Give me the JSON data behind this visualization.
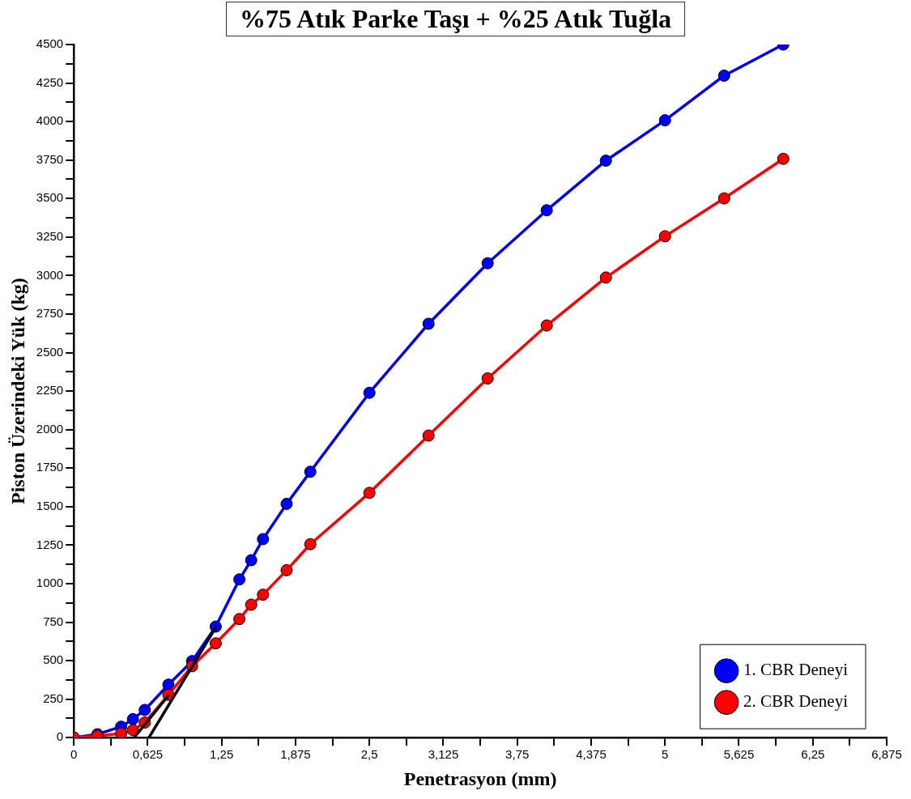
{
  "chart_data": {
    "type": "line",
    "title": "%75 Atık Parke Taşı + %25 Atık Tuğla",
    "xlabel": "Penetrasyon (mm)",
    "ylabel": "Piston Üzerindeki Yük (kg)",
    "x": [
      0,
      0.2,
      0.4,
      0.5,
      0.6,
      0.8,
      1.0,
      1.2,
      1.4,
      1.5,
      1.6,
      1.8,
      2.0,
      2.5,
      3.0,
      3.5,
      4.0,
      4.5,
      5.0,
      5.5,
      6.0
    ],
    "series": [
      {
        "name": "1. CBR Deneyi",
        "color": "#0000ff",
        "values": [
          0,
          22,
          71,
          120,
          180,
          344,
          497,
          721,
          1027,
          1152,
          1289,
          1518,
          1726,
          2239,
          2687,
          3080,
          3424,
          3746,
          4008,
          4298,
          4500
        ]
      },
      {
        "name": "2. CBR Deneyi",
        "color": "#ff0000",
        "values": [
          0,
          10,
          27,
          49,
          98,
          278,
          464,
          612,
          770,
          863,
          928,
          1087,
          1256,
          1589,
          1961,
          2332,
          2676,
          2987,
          3255,
          3501,
          3758
        ]
      },
      {
        "color": "#000000",
        "marker": "none",
        "x": [
          0.51,
          0.8
        ],
        "values": [
          0,
          273
        ]
      },
      {
        "color": "#000000",
        "marker": "none",
        "x": [
          0.635,
          1.2
        ],
        "values": [
          0,
          715
        ]
      }
    ],
    "marker": "circle",
    "legend": "bottom right",
    "xlim": [
      0,
      6.875
    ],
    "ylim": [
      0,
      4500
    ],
    "xticks": [
      0,
      {
        "value": 0.3125,
        "label": null
      },
      {
        "value": 0.625,
        "label": "0,625"
      },
      {
        "value": 0.9375,
        "label": null
      },
      {
        "value": 1.25,
        "label": "1,25"
      },
      {
        "value": 1.5625,
        "label": null
      },
      {
        "value": 1.875,
        "label": "1,875"
      },
      {
        "value": 2.1875,
        "label": null
      },
      {
        "value": 2.5,
        "label": "2,5"
      },
      {
        "value": 2.8125,
        "label": null
      },
      {
        "value": 3.125,
        "label": "3,125"
      },
      {
        "value": 3.4375,
        "label": null
      },
      {
        "value": 3.75,
        "label": "3,75"
      },
      {
        "value": 4.0625,
        "label": null
      },
      {
        "value": 4.375,
        "label": "4,375"
      },
      {
        "value": 4.6875,
        "label": null
      },
      5,
      {
        "value": 5.3125,
        "label": null
      },
      {
        "value": 5.625,
        "label": "5,625"
      },
      {
        "value": 5.9375,
        "label": null
      },
      {
        "value": 6.25,
        "label": "6,25"
      },
      {
        "value": 6.5625,
        "label": null
      },
      {
        "value": 6.875,
        "label": "6,875"
      }
    ],
    "yticks": [
      0,
      {
        "value": 125,
        "label": null
      },
      250,
      {
        "value": 375,
        "label": null
      },
      500,
      {
        "value": 625,
        "label": null
      },
      750,
      {
        "value": 875,
        "label": null
      },
      1000,
      {
        "value": 1125,
        "label": null
      },
      1250,
      {
        "value": 1375,
        "label": null
      },
      1500,
      {
        "value": 1625,
        "label": null
      },
      1750,
      {
        "value": 1875,
        "label": null
      },
      2000,
      {
        "value": 2125,
        "label": null
      },
      2250,
      {
        "value": 2375,
        "label": null
      },
      2500,
      {
        "value": 2625,
        "label": null
      },
      2750,
      {
        "value": 2875,
        "label": null
      },
      3000,
      {
        "value": 3125,
        "label": null
      },
      3250,
      {
        "value": 3375,
        "label": null
      },
      3500,
      {
        "value": 3625,
        "label": null
      },
      3750,
      {
        "value": 3875,
        "label": null
      },
      4000,
      {
        "value": 4125,
        "label": null
      },
      4250,
      {
        "value": 4375,
        "label": null
      },
      4500
    ]
  }
}
